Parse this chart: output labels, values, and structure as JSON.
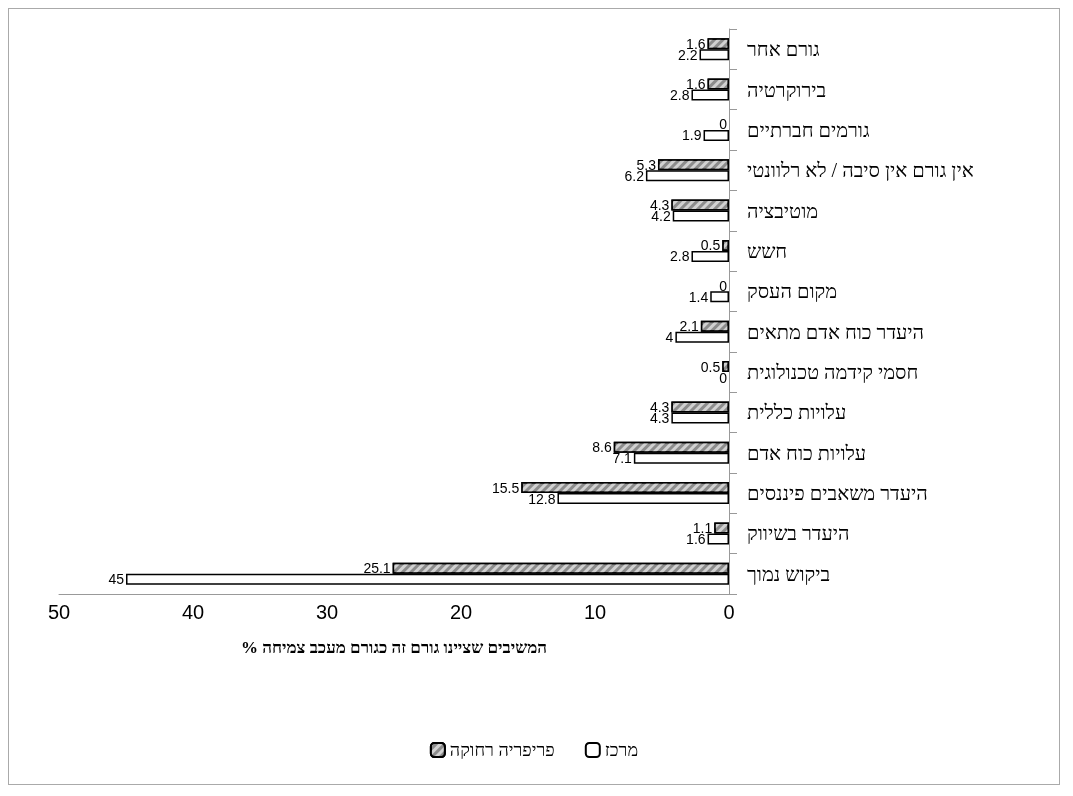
{
  "chart_data": {
    "type": "bar",
    "orientation": "horizontal",
    "xlabel": "% המשיבים שציינו גורם זה כגורם מעכב צמיחה",
    "categories": [
      "גורם אחר",
      "בירוקרטיה",
      "גורמים חברתיים",
      "אין גורם אין סיבה / לא רלוונטי",
      "מוטיבציה",
      "חשש",
      "מקום העסק",
      "היעדר כוח אדם מתאים",
      "חסמי קידמה טכנולוגית",
      "עלויות כללית",
      "עלויות כוח אדם",
      "היעדר משאבים פיננסים",
      "היעדר בשיווק",
      "ביקוש נמוך"
    ],
    "series": [
      {
        "name": "פריפריה רחוקה",
        "color": "#8c8c8c",
        "values": [
          1.6,
          1.6,
          0,
          5.3,
          4.3,
          0.5,
          0,
          2.1,
          0.5,
          4.3,
          8.6,
          15.5,
          1.1,
          25.1
        ]
      },
      {
        "name": "מרכז",
        "color": "#ffffff",
        "values": [
          2.2,
          2.8,
          1.9,
          6.2,
          4.2,
          2.8,
          1.4,
          4,
          0,
          4.3,
          7.1,
          12.8,
          1.6,
          45
        ]
      }
    ],
    "xlim": [
      50,
      0
    ],
    "xticks": [
      0,
      10,
      20,
      30,
      40,
      50
    ],
    "data_labels": true,
    "legend": "bottom",
    "grid": false
  }
}
